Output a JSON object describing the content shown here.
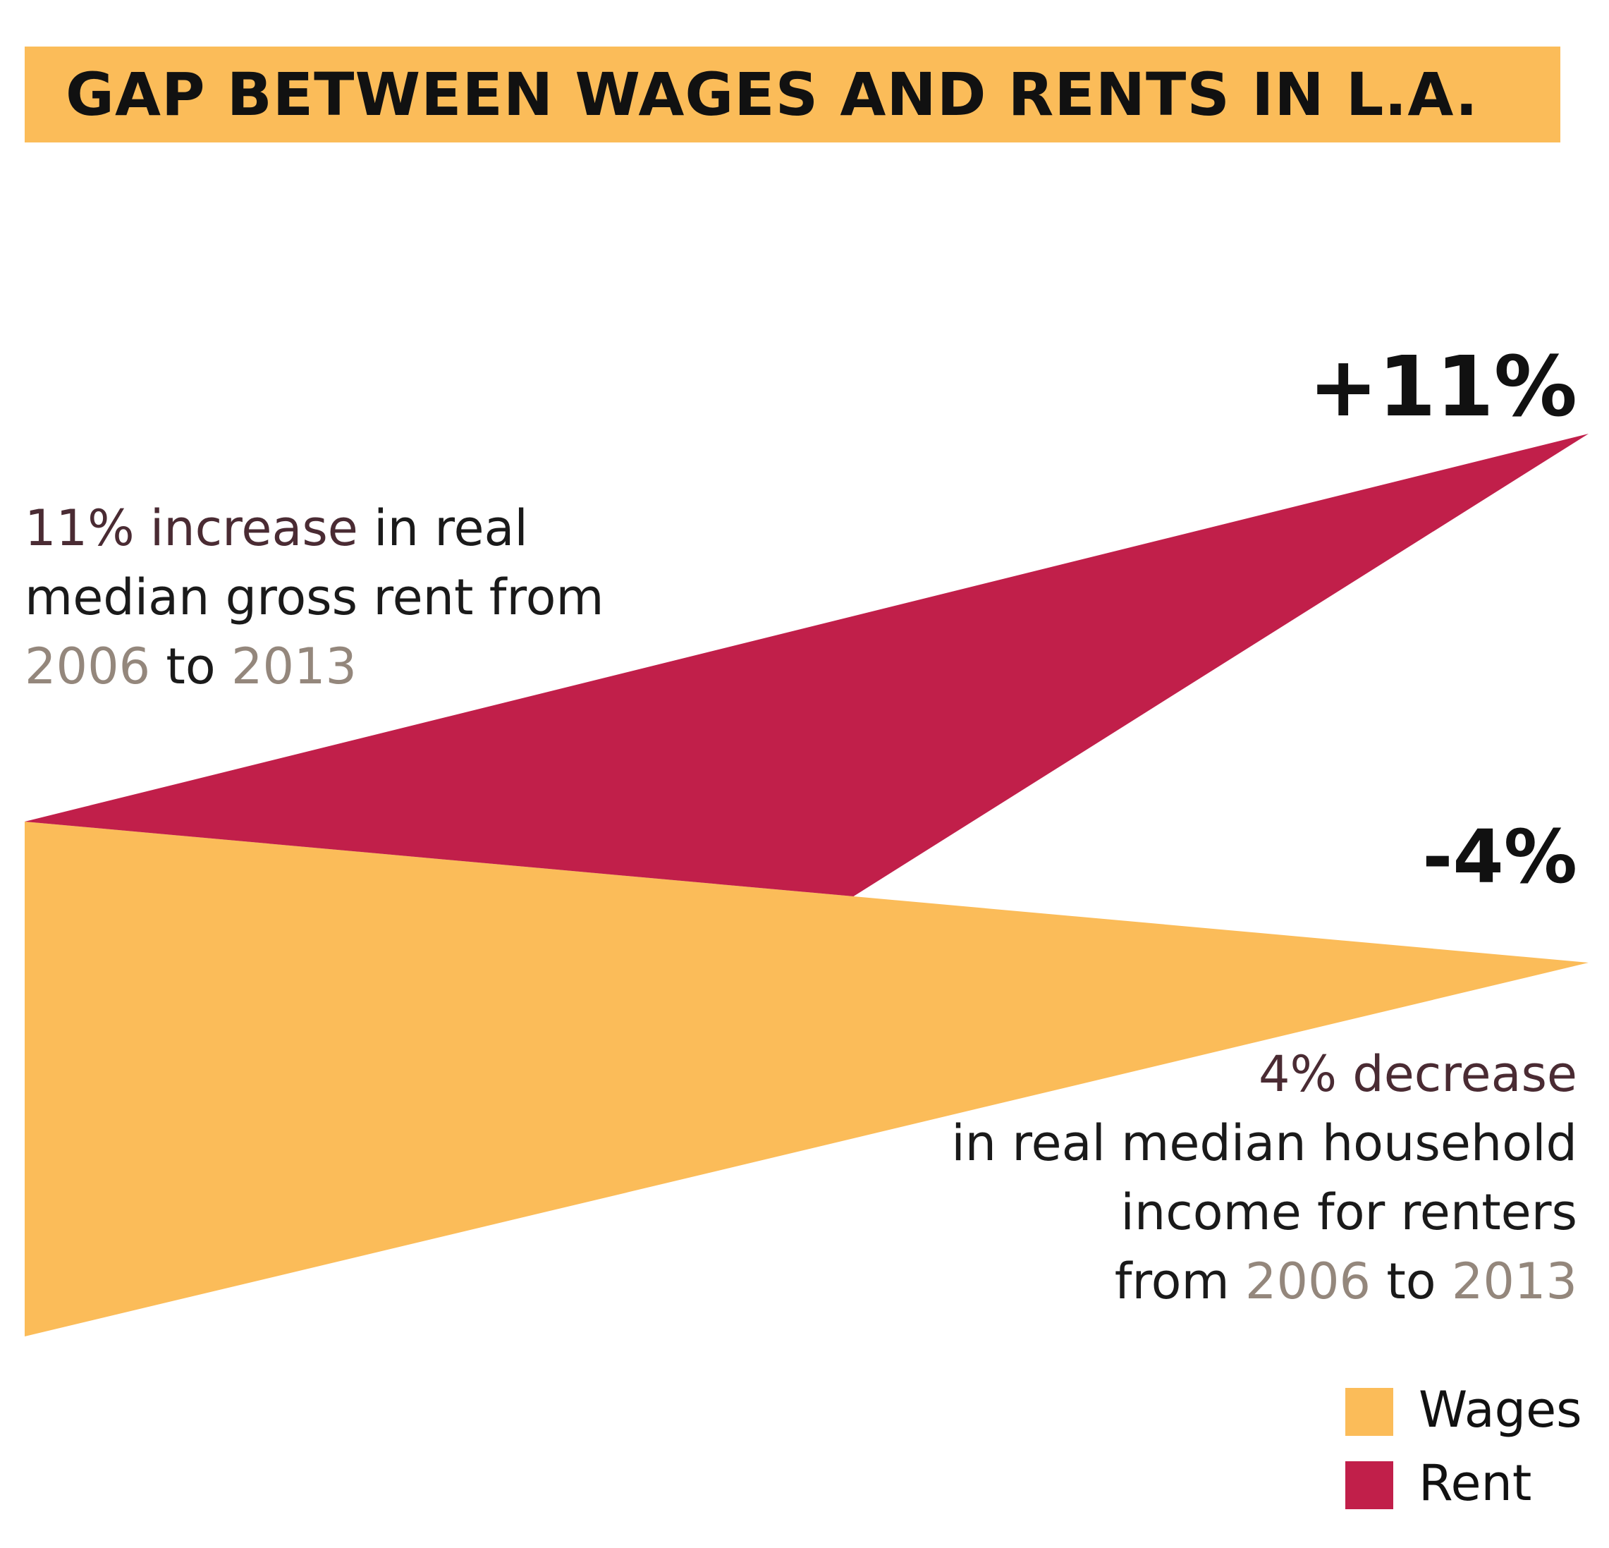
{
  "title": "GAP BETWEEN WAGES AND RENTS IN L.A.",
  "colors": {
    "wages": "#fbbc59",
    "rent": "#c11f4a",
    "title_bar": "#fbbc59",
    "highlight_text": "#4a2b33",
    "year_text": "#94877c"
  },
  "chart_data": {
    "type": "area",
    "title": "GAP BETWEEN WAGES AND RENTS IN L.A.",
    "x": [
      "2006",
      "2013"
    ],
    "series": [
      {
        "name": "Wages",
        "values": [
          0,
          -4
        ],
        "end_label": "-4%"
      },
      {
        "name": "Rent",
        "values": [
          0,
          11
        ],
        "end_label": "+11%"
      }
    ],
    "legend": [
      "Wages",
      "Rent"
    ],
    "legend_position": "bottom-right"
  },
  "annotations": {
    "rent": {
      "line1_highlight": "11% increase",
      "line1_rest": " in real",
      "line2": "median gross rent from",
      "line3_year1": "2006",
      "line3_mid": " to ",
      "line3_year2": "2013"
    },
    "wages": {
      "line1_highlight": "4% decrease",
      "line2": "in real median household",
      "line3": "income for renters",
      "line4_pre": "from ",
      "line4_year1": "2006",
      "line4_mid": " to ",
      "line4_year2": "2013"
    }
  }
}
